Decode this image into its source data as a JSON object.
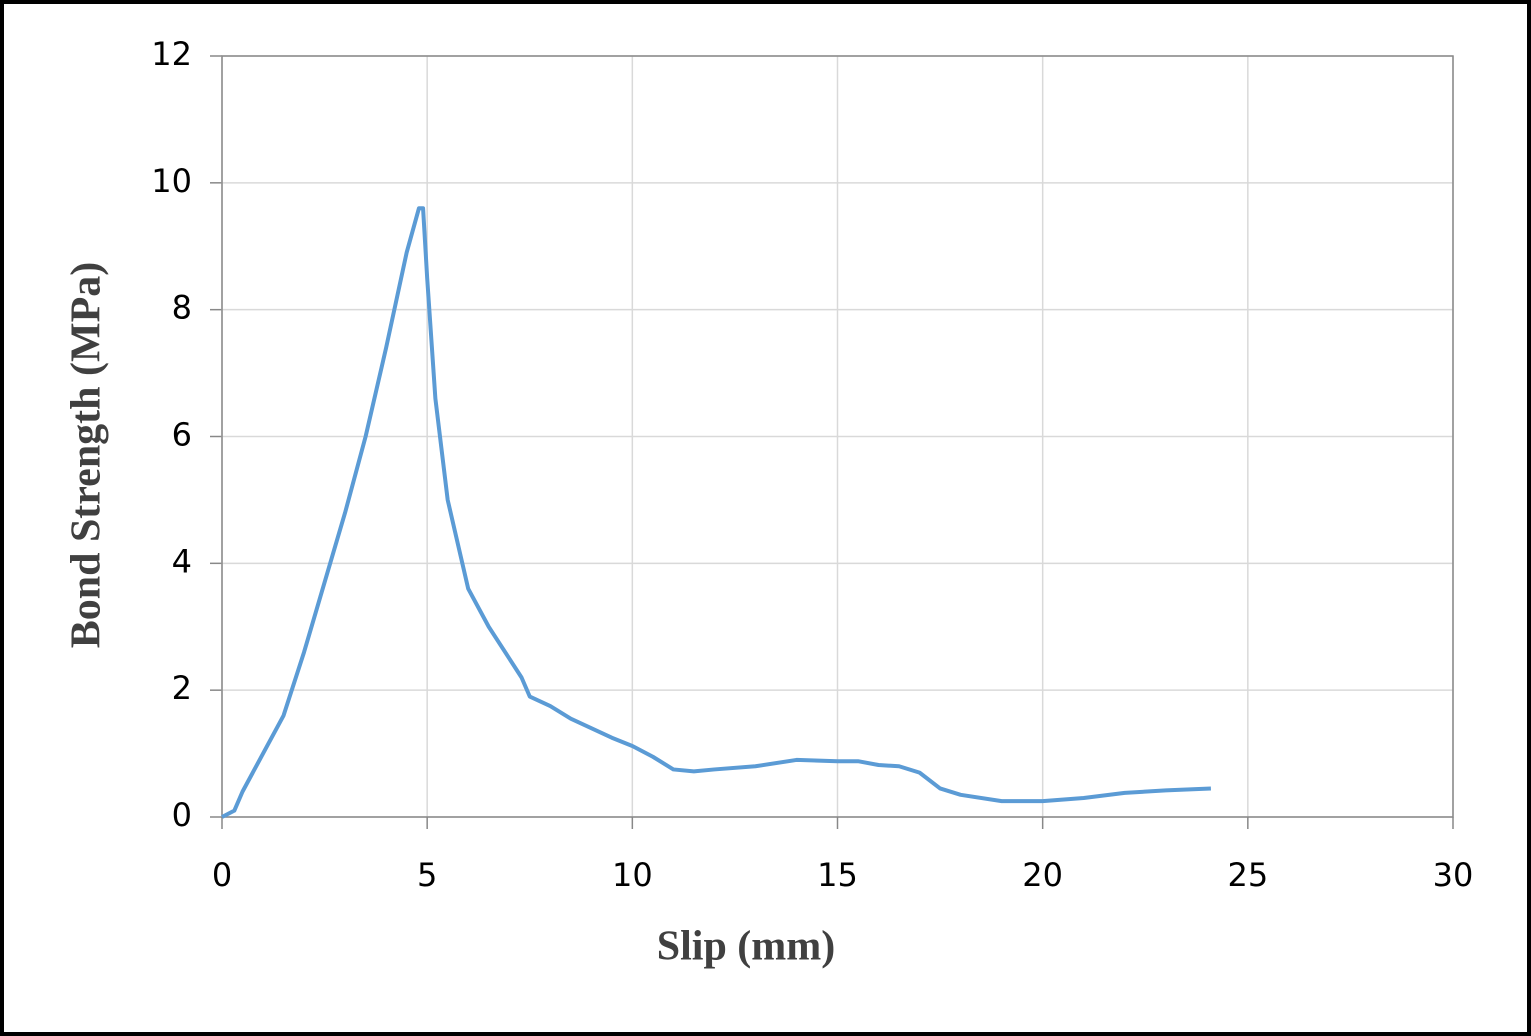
{
  "chart_data": {
    "type": "line",
    "x_label": "Slip (mm)",
    "y_label": "Bond Strength (MPa)",
    "xlim": [
      0,
      30
    ],
    "xticks": [
      0,
      5,
      10,
      15,
      20,
      25,
      30
    ],
    "ylim": [
      0,
      12
    ],
    "yticks": [
      0,
      2,
      4,
      6,
      8,
      10,
      12
    ],
    "grid": true,
    "series": [
      {
        "color": "#5b9bd5",
        "x": [
          0,
          0.3,
          0.5,
          1,
          1.5,
          2,
          2.5,
          3,
          3.5,
          4,
          4.5,
          4.8,
          4.9,
          5,
          5.2,
          5.5,
          6,
          6.5,
          7,
          7.3,
          7.5,
          8,
          8.5,
          9,
          9.5,
          10,
          10.5,
          11,
          11.5,
          12,
          13,
          14,
          15,
          15.5,
          16,
          16.5,
          17,
          17.5,
          18,
          19,
          20,
          21,
          22,
          23,
          24.1
        ],
        "values": [
          0,
          0.1,
          0.4,
          1,
          1.6,
          2.6,
          3.7,
          4.8,
          6,
          7.4,
          8.9,
          9.6,
          9.6,
          8.5,
          6.6,
          5,
          3.6,
          3,
          2.5,
          2.2,
          1.9,
          1.75,
          1.55,
          1.4,
          1.25,
          1.12,
          0.95,
          0.75,
          0.72,
          0.75,
          0.8,
          0.9,
          0.88,
          0.88,
          0.82,
          0.8,
          0.7,
          0.45,
          0.35,
          0.25,
          0.25,
          0.3,
          0.38,
          0.42,
          0.45
        ]
      }
    ]
  }
}
